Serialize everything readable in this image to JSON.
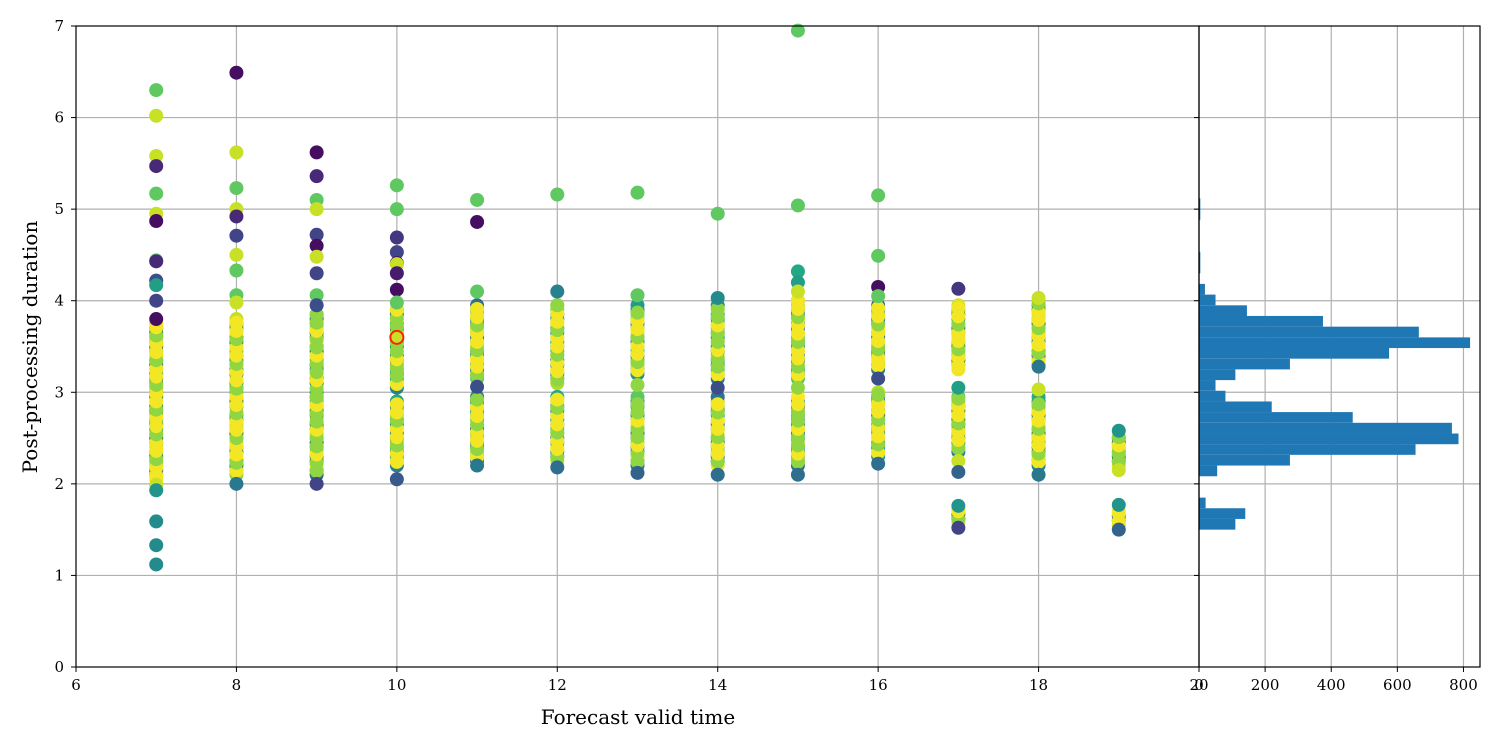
{
  "chart_data": [
    {
      "type": "scatter",
      "title": "",
      "xlabel": "Forecast valid time",
      "ylabel": "Post-processing duration",
      "xlim": [
        6,
        20
      ],
      "ylim": [
        0,
        7
      ],
      "xticks": [
        "6",
        "8",
        "10",
        "12",
        "14",
        "16",
        "18",
        "20"
      ],
      "yticks": [
        "0",
        "1",
        "2",
        "3",
        "4",
        "5",
        "6",
        "7"
      ],
      "grid": true,
      "colormap": "viridis",
      "highlight_color": "#ff2200",
      "highlight_point": {
        "x": 10,
        "y": 3.6
      },
      "columns": [
        {
          "x": 7,
          "points": [
            {
              "y": 6.3,
              "c": 0.85
            },
            {
              "y": 6.02,
              "c": 0.95
            },
            {
              "y": 5.58,
              "c": 0.95
            },
            {
              "y": 5.47,
              "c": 0.15
            },
            {
              "y": 5.17,
              "c": 0.85
            },
            {
              "y": 4.95,
              "c": 0.95
            },
            {
              "y": 4.87,
              "c": 0.05
            },
            {
              "y": 4.44,
              "c": 0.85
            },
            {
              "y": 4.43,
              "c": 0.15
            },
            {
              "y": 4.22,
              "c": 0.3
            },
            {
              "y": 4.17,
              "c": 0.7
            },
            {
              "y": 4.0,
              "c": 0.25
            },
            {
              "y": 3.8,
              "c": 0.05
            },
            {
              "y": 1.99,
              "c": 0.95
            },
            {
              "y": 1.93,
              "c": 0.65
            },
            {
              "y": 1.59,
              "c": 0.6
            },
            {
              "y": 1.33,
              "c": 0.6
            },
            {
              "y": 1.12,
              "c": 0.6
            }
          ],
          "bands": [
            [
              2.05,
              3.75
            ]
          ]
        },
        {
          "x": 8,
          "points": [
            {
              "y": 6.49,
              "c": 0.05
            },
            {
              "y": 5.62,
              "c": 0.95
            },
            {
              "y": 5.23,
              "c": 0.85
            },
            {
              "y": 5.0,
              "c": 0.95
            },
            {
              "y": 4.92,
              "c": 0.15
            },
            {
              "y": 4.71,
              "c": 0.25
            },
            {
              "y": 4.5,
              "c": 0.95
            },
            {
              "y": 4.33,
              "c": 0.85
            },
            {
              "y": 4.06,
              "c": 0.85
            },
            {
              "y": 3.98,
              "c": 0.95
            },
            {
              "y": 2.0,
              "c": 0.5
            }
          ],
          "bands": [
            [
              2.1,
              3.8
            ]
          ]
        },
        {
          "x": 9,
          "points": [
            {
              "y": 5.62,
              "c": 0.05
            },
            {
              "y": 5.36,
              "c": 0.15
            },
            {
              "y": 5.1,
              "c": 0.85
            },
            {
              "y": 5.0,
              "c": 0.95
            },
            {
              "y": 4.72,
              "c": 0.25
            },
            {
              "y": 4.6,
              "c": 0.05
            },
            {
              "y": 4.48,
              "c": 0.95
            },
            {
              "y": 4.3,
              "c": 0.25
            },
            {
              "y": 4.06,
              "c": 0.85
            },
            {
              "y": 3.95,
              "c": 0.3
            },
            {
              "y": 2.0,
              "c": 0.25
            }
          ],
          "bands": [
            [
              2.1,
              3.85
            ]
          ]
        },
        {
          "x": 10,
          "points": [
            {
              "y": 5.26,
              "c": 0.85
            },
            {
              "y": 5.0,
              "c": 0.85
            },
            {
              "y": 4.69,
              "c": 0.2
            },
            {
              "y": 4.53,
              "c": 0.25
            },
            {
              "y": 4.41,
              "c": 0.05
            },
            {
              "y": 4.4,
              "c": 0.95
            },
            {
              "y": 4.3,
              "c": 0.1
            },
            {
              "y": 4.12,
              "c": 0.05
            },
            {
              "y": 3.98,
              "c": 0.85
            },
            {
              "y": 2.05,
              "c": 0.35
            }
          ],
          "bands": [
            [
              2.2,
              2.9
            ],
            [
              3.05,
              3.9
            ]
          ]
        },
        {
          "x": 11,
          "points": [
            {
              "y": 5.1,
              "c": 0.85
            },
            {
              "y": 4.86,
              "c": 0.05
            },
            {
              "y": 4.1,
              "c": 0.85
            },
            {
              "y": 3.06,
              "c": 0.3
            },
            {
              "y": 2.2,
              "c": 0.5
            }
          ],
          "bands": [
            [
              2.25,
              2.95
            ],
            [
              3.15,
              3.95
            ]
          ]
        },
        {
          "x": 12,
          "points": [
            {
              "y": 5.16,
              "c": 0.85
            },
            {
              "y": 4.1,
              "c": 0.55
            },
            {
              "y": 2.18,
              "c": 0.45
            }
          ],
          "bands": [
            [
              2.25,
              2.95
            ],
            [
              3.1,
              3.95
            ]
          ]
        },
        {
          "x": 13,
          "points": [
            {
              "y": 5.18,
              "c": 0.85
            },
            {
              "y": 4.06,
              "c": 0.85
            },
            {
              "y": 3.08,
              "c": 0.9
            },
            {
              "y": 2.12,
              "c": 0.4
            }
          ],
          "bands": [
            [
              2.2,
              2.95
            ],
            [
              3.2,
              3.95
            ]
          ]
        },
        {
          "x": 14,
          "points": [
            {
              "y": 4.95,
              "c": 0.85
            },
            {
              "y": 4.03,
              "c": 0.6
            },
            {
              "y": 3.05,
              "c": 0.3
            },
            {
              "y": 2.1,
              "c": 0.45
            }
          ],
          "bands": [
            [
              2.2,
              2.95
            ],
            [
              3.15,
              3.95
            ]
          ]
        },
        {
          "x": 15,
          "points": [
            {
              "y": 6.95,
              "c": 0.85
            },
            {
              "y": 5.04,
              "c": 0.85
            },
            {
              "y": 4.32,
              "c": 0.75
            },
            {
              "y": 4.2,
              "c": 0.7
            },
            {
              "y": 4.1,
              "c": 0.95
            },
            {
              "y": 3.05,
              "c": 0.9
            },
            {
              "y": 2.1,
              "c": 0.45
            }
          ],
          "bands": [
            [
              2.2,
              2.95
            ],
            [
              3.15,
              4.0
            ]
          ]
        },
        {
          "x": 16,
          "points": [
            {
              "y": 5.15,
              "c": 0.85
            },
            {
              "y": 4.49,
              "c": 0.85
            },
            {
              "y": 4.15,
              "c": 0.05
            },
            {
              "y": 4.05,
              "c": 0.85
            },
            {
              "y": 3.15,
              "c": 0.3
            },
            {
              "y": 2.22,
              "c": 0.45
            }
          ],
          "bands": [
            [
              2.3,
              3.0
            ],
            [
              3.25,
              3.98
            ]
          ]
        },
        {
          "x": 17,
          "points": [
            {
              "y": 4.13,
              "c": 0.2
            },
            {
              "y": 3.05,
              "c": 0.7
            },
            {
              "y": 2.25,
              "c": 0.95
            },
            {
              "y": 2.13,
              "c": 0.4
            },
            {
              "y": 1.76,
              "c": 0.65
            },
            {
              "y": 1.52,
              "c": 0.25
            }
          ],
          "bands": [
            [
              2.35,
              2.95
            ],
            [
              3.25,
              3.98
            ],
            [
              1.57,
              1.72
            ]
          ]
        },
        {
          "x": 18,
          "points": [
            {
              "y": 4.03,
              "c": 0.95
            },
            {
              "y": 3.03,
              "c": 0.95
            },
            {
              "y": 3.28,
              "c": 0.5
            },
            {
              "y": 2.1,
              "c": 0.5
            }
          ],
          "bands": [
            [
              2.2,
              2.95
            ],
            [
              3.3,
              3.98
            ]
          ]
        },
        {
          "x": 19,
          "points": [
            {
              "y": 2.58,
              "c": 0.65
            },
            {
              "y": 2.15,
              "c": 0.95
            },
            {
              "y": 1.77,
              "c": 0.65
            },
            {
              "y": 1.5,
              "c": 0.4
            }
          ],
          "bands": [
            [
              2.2,
              2.52
            ],
            [
              1.55,
              1.73
            ]
          ]
        }
      ]
    },
    {
      "type": "bar",
      "orientation": "horizontal",
      "title": "",
      "xlabel": "",
      "ylabel": "",
      "xlim": [
        0,
        850
      ],
      "ylim": [
        0,
        7
      ],
      "xticks": [
        "0",
        "200",
        "400",
        "600",
        "800"
      ],
      "grid": true,
      "bar_color": "#1f77b4",
      "bin_width": 0.1167,
      "bins": [
        {
          "y0": 1.5,
          "value": 110
        },
        {
          "y0": 1.617,
          "value": 140
        },
        {
          "y0": 1.733,
          "value": 20
        },
        {
          "y0": 2.083,
          "value": 55
        },
        {
          "y0": 2.2,
          "value": 275
        },
        {
          "y0": 2.317,
          "value": 655
        },
        {
          "y0": 2.433,
          "value": 785
        },
        {
          "y0": 2.55,
          "value": 765
        },
        {
          "y0": 2.667,
          "value": 465
        },
        {
          "y0": 2.783,
          "value": 220
        },
        {
          "y0": 2.9,
          "value": 80
        },
        {
          "y0": 3.017,
          "value": 50
        },
        {
          "y0": 3.133,
          "value": 110
        },
        {
          "y0": 3.25,
          "value": 275
        },
        {
          "y0": 3.367,
          "value": 575
        },
        {
          "y0": 3.483,
          "value": 820
        },
        {
          "y0": 3.6,
          "value": 665
        },
        {
          "y0": 3.717,
          "value": 375
        },
        {
          "y0": 3.833,
          "value": 145
        },
        {
          "y0": 3.95,
          "value": 50
        },
        {
          "y0": 4.067,
          "value": 18
        },
        {
          "y0": 4.3,
          "value": 4
        },
        {
          "y0": 4.417,
          "value": 4
        },
        {
          "y0": 4.883,
          "value": 4
        },
        {
          "y0": 5.0,
          "value": 4
        }
      ]
    }
  ]
}
